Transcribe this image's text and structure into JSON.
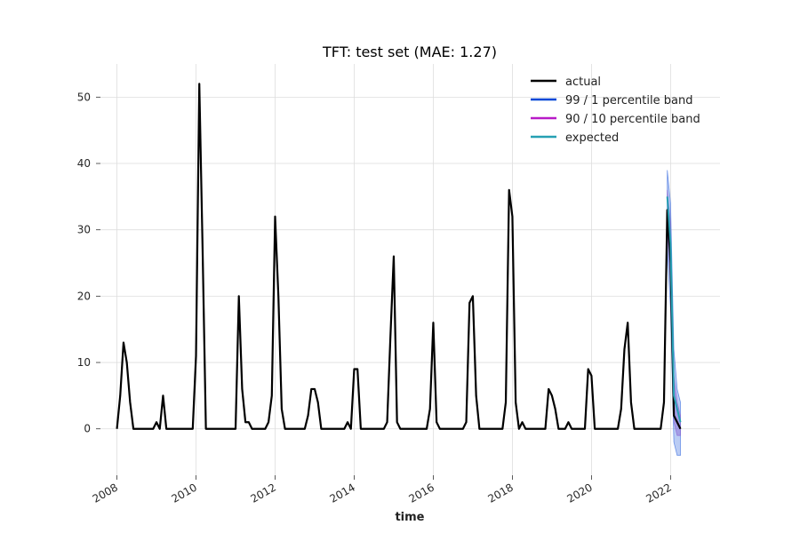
{
  "chart_data": {
    "type": "line",
    "title": "TFT: test set (MAE: 1.27)",
    "xlabel": "time",
    "ylabel": "",
    "xlim": [
      "2007-08-01",
      "2023-04-01"
    ],
    "ylim": [
      -7,
      55
    ],
    "x_ticks": [
      "2008",
      "2010",
      "2012",
      "2014",
      "2016",
      "2018",
      "2020",
      "2022"
    ],
    "y_ticks": [
      0,
      10,
      20,
      30,
      40,
      50
    ],
    "grid": true,
    "legend_position": "top-right",
    "legend": [
      {
        "name": "actual",
        "color": "#000000"
      },
      {
        "name": "99 / 1 percentile band",
        "color": "#0047d6"
      },
      {
        "name": "90 / 10 percentile band",
        "color": "#b81ac7"
      },
      {
        "name": "expected",
        "color": "#26a0b3"
      }
    ],
    "series": [
      {
        "name": "actual",
        "color": "#000000",
        "points": [
          [
            "2008-01",
            0
          ],
          [
            "2008-02",
            5
          ],
          [
            "2008-03",
            13
          ],
          [
            "2008-04",
            10
          ],
          [
            "2008-05",
            4
          ],
          [
            "2008-06",
            0
          ],
          [
            "2008-07",
            0
          ],
          [
            "2008-08",
            0
          ],
          [
            "2008-09",
            0
          ],
          [
            "2008-10",
            0
          ],
          [
            "2008-11",
            0
          ],
          [
            "2008-12",
            0
          ],
          [
            "2009-01",
            1
          ],
          [
            "2009-02",
            0
          ],
          [
            "2009-03",
            5
          ],
          [
            "2009-04",
            0
          ],
          [
            "2009-05",
            0
          ],
          [
            "2009-06",
            0
          ],
          [
            "2009-07",
            0
          ],
          [
            "2009-08",
            0
          ],
          [
            "2009-09",
            0
          ],
          [
            "2009-10",
            0
          ],
          [
            "2009-11",
            0
          ],
          [
            "2009-12",
            0
          ],
          [
            "2010-01",
            11
          ],
          [
            "2010-02",
            52
          ],
          [
            "2010-03",
            27
          ],
          [
            "2010-04",
            0
          ],
          [
            "2010-05",
            0
          ],
          [
            "2010-06",
            0
          ],
          [
            "2010-07",
            0
          ],
          [
            "2010-08",
            0
          ],
          [
            "2010-09",
            0
          ],
          [
            "2010-10",
            0
          ],
          [
            "2010-11",
            0
          ],
          [
            "2010-12",
            0
          ],
          [
            "2011-01",
            0
          ],
          [
            "2011-02",
            20
          ],
          [
            "2011-03",
            6
          ],
          [
            "2011-04",
            1
          ],
          [
            "2011-05",
            1
          ],
          [
            "2011-06",
            0
          ],
          [
            "2011-07",
            0
          ],
          [
            "2011-08",
            0
          ],
          [
            "2011-09",
            0
          ],
          [
            "2011-10",
            0
          ],
          [
            "2011-11",
            1
          ],
          [
            "2011-12",
            5
          ],
          [
            "2012-01",
            32
          ],
          [
            "2012-02",
            20
          ],
          [
            "2012-03",
            3
          ],
          [
            "2012-04",
            0
          ],
          [
            "2012-05",
            0
          ],
          [
            "2012-06",
            0
          ],
          [
            "2012-07",
            0
          ],
          [
            "2012-08",
            0
          ],
          [
            "2012-09",
            0
          ],
          [
            "2012-10",
            0
          ],
          [
            "2012-11",
            2
          ],
          [
            "2012-12",
            6
          ],
          [
            "2013-01",
            6
          ],
          [
            "2013-02",
            4
          ],
          [
            "2013-03",
            0
          ],
          [
            "2013-04",
            0
          ],
          [
            "2013-05",
            0
          ],
          [
            "2013-06",
            0
          ],
          [
            "2013-07",
            0
          ],
          [
            "2013-08",
            0
          ],
          [
            "2013-09",
            0
          ],
          [
            "2013-10",
            0
          ],
          [
            "2013-11",
            1
          ],
          [
            "2013-12",
            0
          ],
          [
            "2014-01",
            9
          ],
          [
            "2014-02",
            9
          ],
          [
            "2014-03",
            0
          ],
          [
            "2014-04",
            0
          ],
          [
            "2014-05",
            0
          ],
          [
            "2014-06",
            0
          ],
          [
            "2014-07",
            0
          ],
          [
            "2014-08",
            0
          ],
          [
            "2014-09",
            0
          ],
          [
            "2014-10",
            0
          ],
          [
            "2014-11",
            1
          ],
          [
            "2014-12",
            14
          ],
          [
            "2015-01",
            26
          ],
          [
            "2015-02",
            1
          ],
          [
            "2015-03",
            0
          ],
          [
            "2015-04",
            0
          ],
          [
            "2015-05",
            0
          ],
          [
            "2015-06",
            0
          ],
          [
            "2015-07",
            0
          ],
          [
            "2015-08",
            0
          ],
          [
            "2015-09",
            0
          ],
          [
            "2015-10",
            0
          ],
          [
            "2015-11",
            0
          ],
          [
            "2015-12",
            3
          ],
          [
            "2016-01",
            16
          ],
          [
            "2016-02",
            1
          ],
          [
            "2016-03",
            0
          ],
          [
            "2016-04",
            0
          ],
          [
            "2016-05",
            0
          ],
          [
            "2016-06",
            0
          ],
          [
            "2016-07",
            0
          ],
          [
            "2016-08",
            0
          ],
          [
            "2016-09",
            0
          ],
          [
            "2016-10",
            0
          ],
          [
            "2016-11",
            1
          ],
          [
            "2016-12",
            19
          ],
          [
            "2017-01",
            20
          ],
          [
            "2017-02",
            5
          ],
          [
            "2017-03",
            0
          ],
          [
            "2017-04",
            0
          ],
          [
            "2017-05",
            0
          ],
          [
            "2017-06",
            0
          ],
          [
            "2017-07",
            0
          ],
          [
            "2017-08",
            0
          ],
          [
            "2017-09",
            0
          ],
          [
            "2017-10",
            0
          ],
          [
            "2017-11",
            4
          ],
          [
            "2017-12",
            36
          ],
          [
            "2018-01",
            32
          ],
          [
            "2018-02",
            4
          ],
          [
            "2018-03",
            0
          ],
          [
            "2018-04",
            1
          ],
          [
            "2018-05",
            0
          ],
          [
            "2018-06",
            0
          ],
          [
            "2018-07",
            0
          ],
          [
            "2018-08",
            0
          ],
          [
            "2018-09",
            0
          ],
          [
            "2018-10",
            0
          ],
          [
            "2018-11",
            0
          ],
          [
            "2018-12",
            6
          ],
          [
            "2019-01",
            5
          ],
          [
            "2019-02",
            3
          ],
          [
            "2019-03",
            0
          ],
          [
            "2019-04",
            0
          ],
          [
            "2019-05",
            0
          ],
          [
            "2019-06",
            1
          ],
          [
            "2019-07",
            0
          ],
          [
            "2019-08",
            0
          ],
          [
            "2019-09",
            0
          ],
          [
            "2019-10",
            0
          ],
          [
            "2019-11",
            0
          ],
          [
            "2019-12",
            9
          ],
          [
            "2020-01",
            8
          ],
          [
            "2020-02",
            0
          ],
          [
            "2020-03",
            0
          ],
          [
            "2020-04",
            0
          ],
          [
            "2020-05",
            0
          ],
          [
            "2020-06",
            0
          ],
          [
            "2020-07",
            0
          ],
          [
            "2020-08",
            0
          ],
          [
            "2020-09",
            0
          ],
          [
            "2020-10",
            3
          ],
          [
            "2020-11",
            12
          ],
          [
            "2020-12",
            16
          ],
          [
            "2021-01",
            4
          ],
          [
            "2021-02",
            0
          ],
          [
            "2021-03",
            0
          ],
          [
            "2021-04",
            0
          ],
          [
            "2021-05",
            0
          ],
          [
            "2021-06",
            0
          ],
          [
            "2021-07",
            0
          ],
          [
            "2021-08",
            0
          ],
          [
            "2021-09",
            0
          ],
          [
            "2021-10",
            0
          ],
          [
            "2021-11",
            4
          ],
          [
            "2021-12",
            33
          ],
          [
            "2022-01",
            25
          ],
          [
            "2022-02",
            2
          ],
          [
            "2022-03",
            1
          ],
          [
            "2022-04",
            0
          ]
        ]
      },
      {
        "name": "expected",
        "color": "#26a0b3",
        "points": [
          [
            "2021-12",
            35
          ],
          [
            "2022-01",
            28
          ],
          [
            "2022-02",
            5
          ],
          [
            "2022-03",
            3
          ],
          [
            "2022-04",
            1
          ]
        ]
      }
    ],
    "bands": [
      {
        "name": "99 / 1 percentile band",
        "color": "#3a6ee0",
        "points": [
          [
            "2021-12",
            27,
            39
          ],
          [
            "2022-01",
            18,
            34
          ],
          [
            "2022-02",
            -2,
            12
          ],
          [
            "2022-03",
            -4,
            6
          ],
          [
            "2022-04",
            -4,
            4
          ]
        ]
      },
      {
        "name": "90 / 10 percentile band",
        "color": "#8a63d2",
        "points": [
          [
            "2021-12",
            30,
            36
          ],
          [
            "2022-01",
            22,
            31
          ],
          [
            "2022-02",
            1,
            8
          ],
          [
            "2022-03",
            -1,
            4
          ],
          [
            "2022-04",
            -1,
            2
          ]
        ]
      }
    ]
  }
}
